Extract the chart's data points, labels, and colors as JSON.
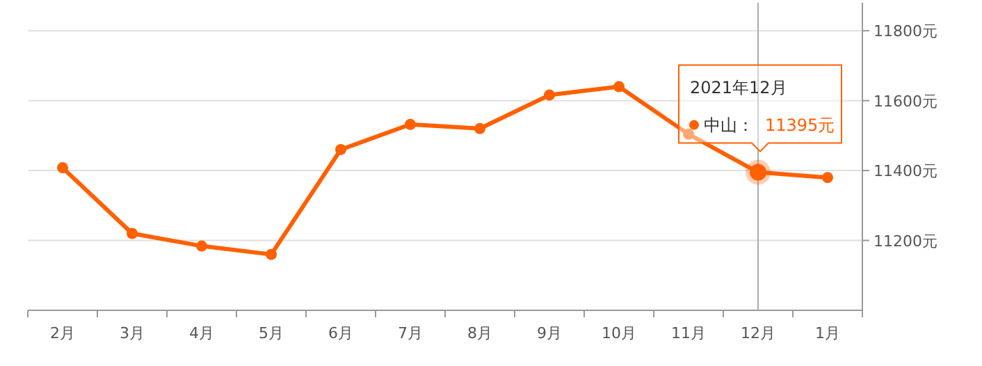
{
  "chart_data": {
    "type": "line",
    "categories": [
      "2月",
      "3月",
      "4月",
      "5月",
      "6月",
      "7月",
      "8月",
      "9月",
      "10月",
      "11月",
      "12月",
      "1月"
    ],
    "series": [
      {
        "name": "中山：",
        "color": "#ff6000",
        "values": [
          11408,
          11220,
          11184,
          11160,
          11460,
          11532,
          11520,
          11616,
          11640,
          11504,
          11395,
          11380
        ],
        "value_labels": [
          null,
          null,
          null,
          null,
          null,
          null,
          null,
          null,
          null,
          null,
          "11395元",
          null
        ]
      }
    ],
    "annotations": [
      "2021年12月"
    ],
    "ref_lines": [
      {
        "axis": "x",
        "value": "12月",
        "color": "#aaaaaa"
      }
    ],
    "ylim": [
      11000,
      11880
    ],
    "yticks": [
      {
        "value": 11200,
        "label": "11200元"
      },
      {
        "value": 11400,
        "label": "11400元"
      },
      {
        "value": 11600,
        "label": "11600元"
      },
      {
        "value": 11800,
        "label": "11800元"
      }
    ],
    "grid": "y",
    "marker": "circle"
  }
}
